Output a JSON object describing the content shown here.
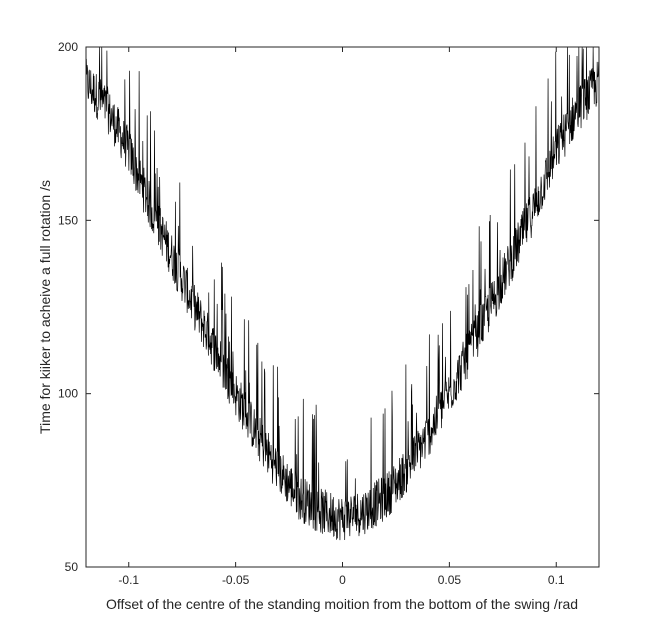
{
  "chart_data": {
    "type": "line",
    "title": "",
    "xlabel": "Offset of the centre of the standing moition from the bottom of the swing /rad",
    "ylabel": "Time for kiiker to acheive a full rotation /s",
    "xlim": [
      -0.12,
      0.12
    ],
    "ylim": [
      50,
      200
    ],
    "xticks": [
      -0.1,
      -0.05,
      0,
      0.05,
      0.1
    ],
    "xtick_labels": [
      "-0.1",
      "-0.05",
      "0",
      "0.05",
      "0.1"
    ],
    "yticks": [
      50,
      100,
      150,
      200
    ],
    "ytick_labels": [
      "50",
      "100",
      "150",
      "200"
    ],
    "grid": false,
    "legend": "none",
    "line_color": "#000000",
    "series": [
      {
        "x": [
          -0.12,
          -0.11,
          -0.1,
          -0.09,
          -0.08,
          -0.07,
          -0.06,
          -0.05,
          -0.04,
          -0.03,
          -0.02,
          -0.01,
          0,
          0.01,
          0.02,
          0.03,
          0.04,
          0.05,
          0.06,
          0.07,
          0.08,
          0.09,
          0.1,
          0.11,
          0.12
        ],
        "y": [
          188,
          180,
          168,
          152,
          138,
          124,
          111,
          98,
          86,
          76,
          68,
          64,
          62,
          64,
          68,
          76,
          86,
          98,
          111,
          124,
          138,
          152,
          168,
          180,
          188
        ],
        "noise_band": 15
      }
    ]
  }
}
